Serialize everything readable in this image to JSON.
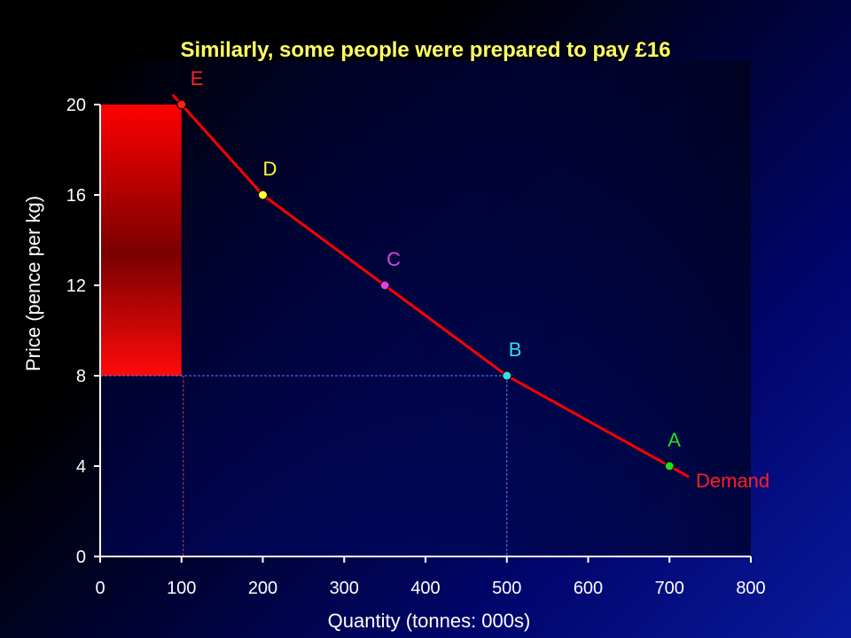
{
  "chart_data": {
    "type": "line",
    "title": "Similarly, some people were prepared to pay £16",
    "xlabel": "Quantity (tonnes: 000s)",
    "ylabel": "Price (pence per kg)",
    "xlim": [
      0,
      800
    ],
    "ylim": [
      0,
      20
    ],
    "xticks": [
      0,
      100,
      200,
      300,
      400,
      500,
      600,
      700,
      800
    ],
    "yticks": [
      0,
      4,
      8,
      12,
      16,
      20
    ],
    "series": [
      {
        "name": "Demand",
        "x": [
          100,
          200,
          350,
          500,
          700
        ],
        "y": [
          20,
          16,
          12,
          8,
          4
        ]
      }
    ],
    "points": [
      {
        "label": "E",
        "x": 100,
        "y": 20,
        "color": "#ff2020"
      },
      {
        "label": "D",
        "x": 200,
        "y": 16,
        "color": "#ffff33"
      },
      {
        "label": "C",
        "x": 350,
        "y": 12,
        "color": "#e040e0"
      },
      {
        "label": "B",
        "x": 500,
        "y": 8,
        "color": "#33ddee"
      },
      {
        "label": "A",
        "x": 700,
        "y": 4,
        "color": "#22dd22"
      }
    ],
    "shaded_area": {
      "x0": 0,
      "x1": 100,
      "y0": 8,
      "y1": 20,
      "color": "#ff0000"
    },
    "reference_lines": {
      "price": 8,
      "quantities": [
        100,
        500
      ]
    },
    "grid": false,
    "colors": {
      "title": "#ffff66",
      "axis_text": "#ffffff",
      "demand_line": "#ff0000",
      "demand_label": "#ff2020",
      "dashed_lines": "#5a7fff"
    }
  }
}
